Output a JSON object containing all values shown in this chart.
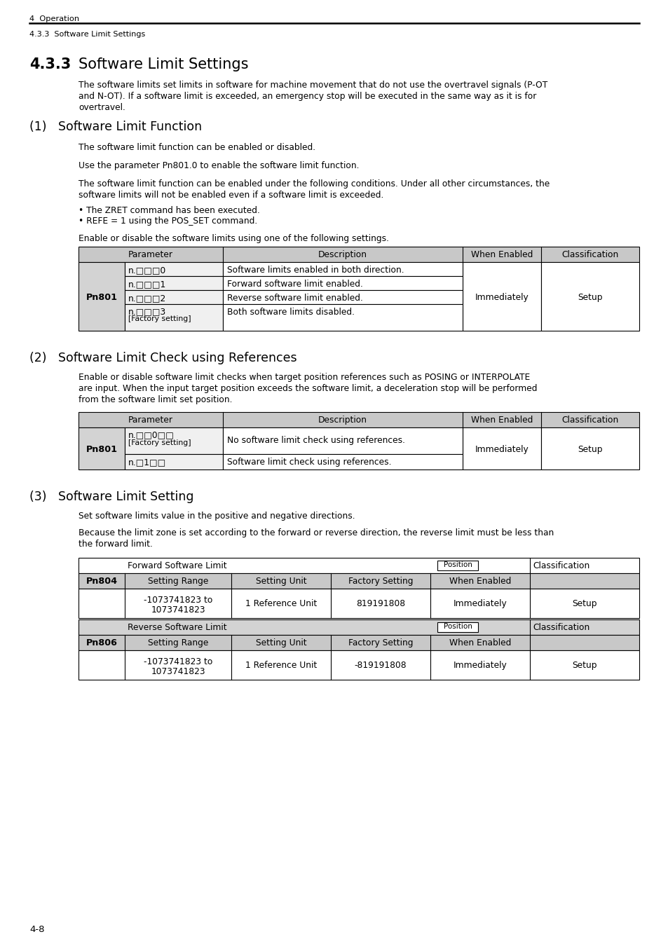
{
  "bg_color": "#ffffff",
  "header_line1": "4  Operation",
  "header_line2": "4.3.3  Software Limit Settings",
  "section_title_num": "4.3.3",
  "section_title": "Software Limit Settings",
  "intro_text1": "The software limits set limits in software for machine movement that do not use the overtravel signals (P-OT",
  "intro_text2": "and N-OT). If a software limit is exceeded, an emergency stop will be executed in the same way as it is for",
  "intro_text3": "overtravel.",
  "sub1_title": "(1)   Software Limit Function",
  "sub1_para1": "The software limit function can be enabled or disabled.",
  "sub1_para2": "Use the parameter Pn801.0 to enable the software limit function.",
  "sub1_para3a": "The software limit function can be enabled under the following conditions. Under all other circumstances, the",
  "sub1_para3b": "software limits will not be enabled even if a software limit is exceeded.",
  "sub1_bullet1": "• The ZRET command has been executed.",
  "sub1_bullet2": "• REFE = 1 using the POS_SET command.",
  "sub1_enable_text": "Enable or disable the software limits using one of the following settings.",
  "sub2_title": "(2)   Software Limit Check using References",
  "sub2_para1a": "Enable or disable software limit checks when target position references such as POSING or INTERPOLATE",
  "sub2_para1b": "are input. When the input target position exceeds the software limit, a deceleration stop will be performed",
  "sub2_para1c": "from the software limit set position.",
  "sub3_title": "(3)   Software Limit Setting",
  "sub3_para1": "Set software limits value in the positive and negative directions.",
  "sub3_para2a": "Because the limit zone is set according to the forward or reverse direction, the reverse limit must be less than",
  "sub3_para2b": "the forward limit.",
  "footer_text": "4-8",
  "gray_color": "#d3d3d3",
  "light_gray": "#f0f0f0",
  "table_header_gray": "#c8c8c8",
  "white": "#ffffff"
}
